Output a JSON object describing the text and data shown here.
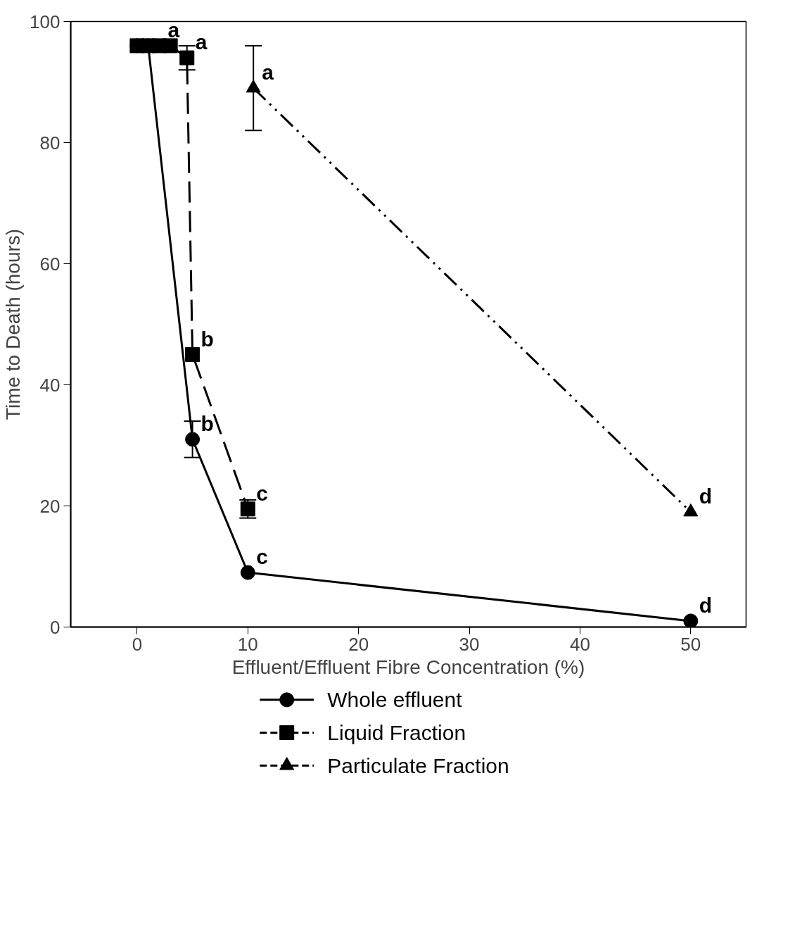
{
  "chart_data": {
    "type": "line",
    "xlabel": "Effluent/Effluent Fibre Concentration (%)",
    "ylabel": "Time to Death (hours)",
    "xlim": [
      -6,
      55
    ],
    "ylim": [
      0,
      100
    ],
    "xticks": [
      0,
      10,
      20,
      30,
      40,
      50
    ],
    "yticks": [
      0,
      20,
      40,
      60,
      80,
      100
    ],
    "grid": false,
    "legend": "bottom",
    "series": [
      {
        "name": "Whole effluent",
        "color": "#000000",
        "marker": "circle",
        "line_style": "solid",
        "x": [
          0,
          1,
          5,
          10,
          50
        ],
        "values": [
          96,
          96,
          31,
          9,
          1
        ],
        "errors": [
          null,
          null,
          [
            28,
            34
          ],
          null,
          null
        ]
      },
      {
        "name": "Liquid Fraction",
        "color": "#000000",
        "marker": "square",
        "line_style": "dashed",
        "x": [
          0,
          1,
          2,
          3,
          4.5,
          5,
          10
        ],
        "values": [
          96,
          96,
          96,
          96,
          94,
          45,
          19.5
        ],
        "errors": [
          null,
          null,
          null,
          null,
          [
            92,
            96
          ],
          null,
          [
            18,
            21
          ]
        ]
      },
      {
        "name": "Particulate Fraction",
        "color": "#000000",
        "marker": "triangle",
        "line_style": "dashdot",
        "x": [
          10.5,
          50
        ],
        "values": [
          89,
          19
        ],
        "errors": [
          [
            82,
            96
          ],
          null
        ]
      }
    ],
    "annotations": [
      {
        "text": "a",
        "x": 2,
        "y": 96
      },
      {
        "text": "a",
        "x": 4.5,
        "y": 94
      },
      {
        "text": "a",
        "x": 10.5,
        "y": 89
      },
      {
        "text": "b",
        "x": 5,
        "y": 45
      },
      {
        "text": "b",
        "x": 5,
        "y": 31
      },
      {
        "text": "c",
        "x": 10,
        "y": 19.5
      },
      {
        "text": "c",
        "x": 10,
        "y": 9
      },
      {
        "text": "d",
        "x": 50,
        "y": 19
      },
      {
        "text": "d",
        "x": 50,
        "y": 1
      }
    ]
  }
}
